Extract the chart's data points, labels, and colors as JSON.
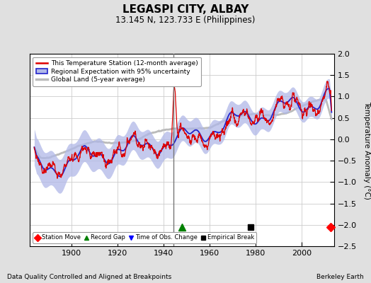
{
  "title": "LEGASPI CITY, ALBAY",
  "subtitle": "13.145 N, 123.733 E (Philippines)",
  "ylabel": "Temperature Anomaly (°C)",
  "xlabel_note": "Data Quality Controlled and Aligned at Breakpoints",
  "xlabel_right": "Berkeley Earth",
  "ylim": [
    -2.5,
    2.0
  ],
  "xlim": [
    1882,
    2014
  ],
  "yticks": [
    -2.5,
    -2,
    -1.5,
    -1,
    -0.5,
    0,
    0.5,
    1,
    1.5,
    2
  ],
  "xticks": [
    1900,
    1920,
    1940,
    1960,
    1980,
    2000
  ],
  "background_color": "#e0e0e0",
  "plot_bg_color": "#ffffff",
  "station_color": "#dd0000",
  "regional_color": "#2222cc",
  "regional_fill_color": "#b0b8e8",
  "global_color": "#bbbbbb",
  "vline_color": "#777777",
  "vline_positions": [
    1944.5
  ],
  "station_move_x": [
    2012.5
  ],
  "record_gap_x": [
    1948.0
  ],
  "empirical_break_x": [
    1978.0
  ],
  "marker_y": -2.05,
  "seed": 42
}
